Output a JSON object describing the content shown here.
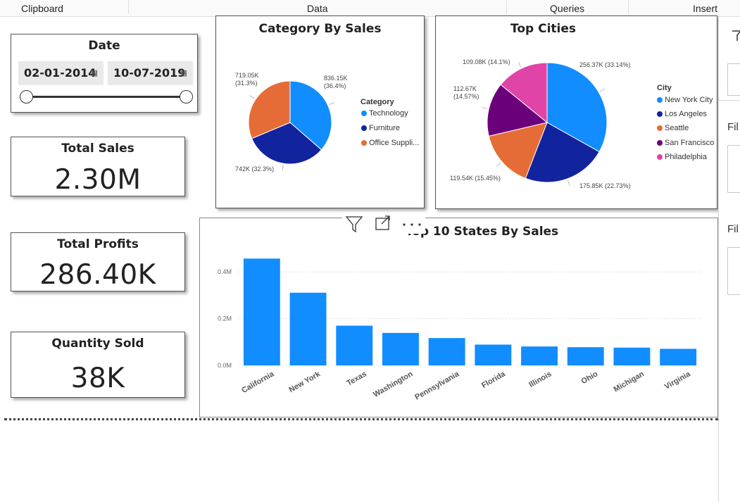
{
  "ribbon": {
    "groups": [
      "Clipboard",
      "Data",
      "Queries",
      "Insert"
    ]
  },
  "date_slicer": {
    "title": "Date",
    "start": "02-01-2014",
    "end": "10-07-2019",
    "calendar_icon": "calendar-icon"
  },
  "kpis": [
    {
      "label": "Total Sales",
      "value": "2.30M"
    },
    {
      "label": "Total Profits",
      "value": "286.40K"
    },
    {
      "label": "Quantity Sold",
      "value": "38K"
    }
  ],
  "chart_data": [
    {
      "type": "pie",
      "title": "Category By Sales",
      "legend_title": "Category",
      "legend_position": "right",
      "slices": [
        {
          "label": "Technology",
          "value": 836.15,
          "display": "836.15K",
          "pct": "(36.4%)",
          "color": "#118DFF"
        },
        {
          "label": "Furniture",
          "value": 742,
          "display": "742K",
          "pct": "(32.3%)",
          "color": "#12239E"
        },
        {
          "label": "Office Suppli...",
          "value": 719.05,
          "display": "719.05K",
          "pct": "(31.3%)",
          "color": "#E66C37"
        }
      ]
    },
    {
      "type": "pie",
      "title": "Top Cities",
      "legend_title": "City",
      "legend_position": "right",
      "slices": [
        {
          "label": "New York City",
          "value": 256.37,
          "display": "256.37K",
          "pct": "(33.14%)",
          "color": "#118DFF"
        },
        {
          "label": "Los Angeles",
          "value": 175.85,
          "display": "175.85K",
          "pct": "(22.73%)",
          "color": "#12239E"
        },
        {
          "label": "Seattle",
          "value": 119.54,
          "display": "119.54K",
          "pct": "(15.45%)",
          "color": "#E66C37"
        },
        {
          "label": "San Francisco",
          "value": 112.67,
          "display": "112.67K",
          "pct": "(14.57%)",
          "color": "#6B007B"
        },
        {
          "label": "Philadelphia",
          "value": 109.08,
          "display": "109.08K",
          "pct": "(14.1%)",
          "color": "#E044A7"
        }
      ]
    },
    {
      "type": "bar",
      "title": "Top 10 States By Sales",
      "categories": [
        "California",
        "New York",
        "Texas",
        "Washington",
        "Pennsylvania",
        "Florida",
        "Illinois",
        "Ohio",
        "Michigan",
        "Virginia"
      ],
      "values": [
        0.457,
        0.311,
        0.17,
        0.139,
        0.117,
        0.089,
        0.081,
        0.078,
        0.076,
        0.071
      ],
      "yticks": [
        "0.0M",
        "0.2M",
        "0.4M"
      ],
      "ytick_values": [
        0,
        0.2,
        0.4
      ],
      "ylim": [
        0,
        0.5
      ],
      "grid": true,
      "color": "#118DFF"
    }
  ],
  "visual_toolbar": {
    "icons": [
      "filter-icon",
      "focus-mode-icon",
      "more-options-icon"
    ]
  },
  "right_pane": {
    "labels": [
      "Fil",
      "Fil"
    ]
  }
}
